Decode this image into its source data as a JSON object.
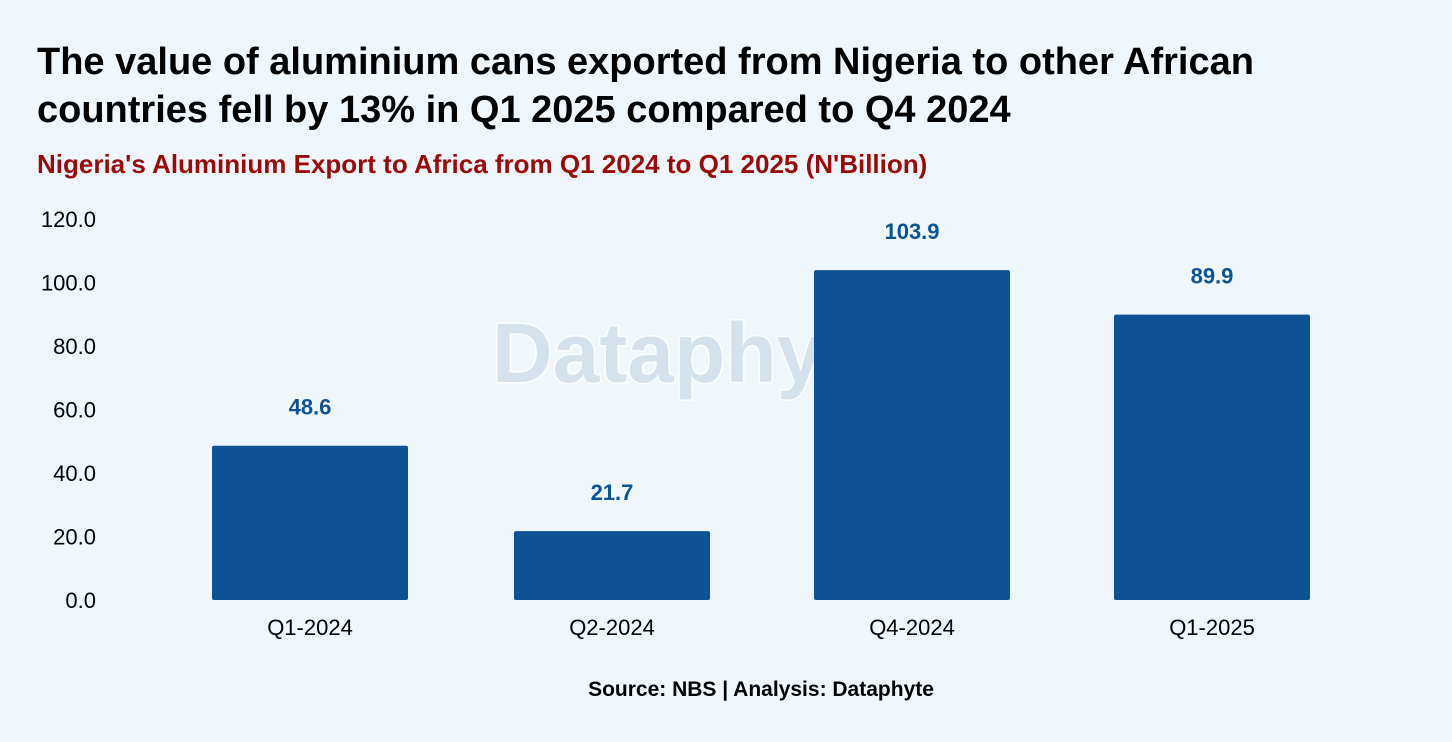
{
  "headline": "The value of aluminium cans exported from Nigeria to other African countries fell by 13% in Q1 2025 compared to Q4 2024",
  "colors": {
    "background": "#eff7fd",
    "bar": "#0d5294",
    "value_label": "#0d5294",
    "subtitle": "#9b0a0a",
    "watermark": "#d4e1ee"
  },
  "watermark": "Dataphyte",
  "source": "Source: NBS | Analysis: Dataphyte",
  "chart_data": {
    "type": "bar",
    "title": "Nigeria's Aluminium Export to Africa from Q1 2024 to Q1 2025 (N'Billion)",
    "xlabel": "",
    "ylabel": "",
    "categories": [
      "Q1-2024",
      "Q2-2024",
      "Q4-2024",
      "Q1-2025"
    ],
    "values": [
      48.6,
      21.7,
      103.9,
      89.9
    ],
    "value_labels": [
      "48.6",
      "21.7",
      "103.9",
      "89.9"
    ],
    "ylim": [
      0,
      120
    ],
    "yticks": [
      0,
      20,
      40,
      60,
      80,
      100,
      120
    ],
    "ytick_labels": [
      "0.0",
      "20.0",
      "40.0",
      "60.0",
      "80.0",
      "100.0",
      "120.0"
    ],
    "grid": false,
    "legend": "none"
  }
}
